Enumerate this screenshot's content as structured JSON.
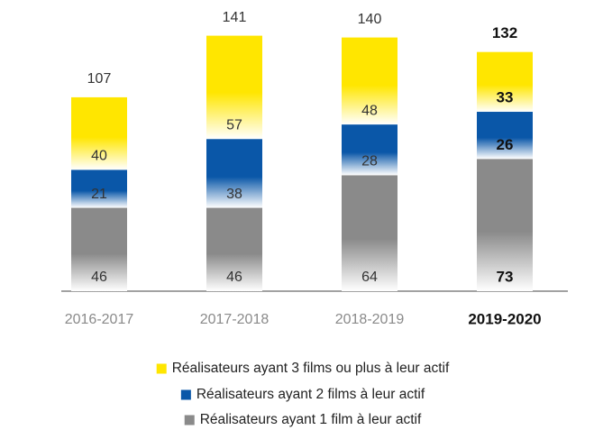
{
  "chart_data": {
    "type": "stacked_bar",
    "categories": [
      "2016-2017",
      "2017-2018",
      "2018-2019",
      "2019-2020"
    ],
    "series": [
      {
        "name": "Réalisateurs ayant 1 film à leur actif",
        "color": "#8a8a8a",
        "values": [
          46,
          46,
          64,
          73
        ]
      },
      {
        "name": "Réalisateurs ayant 2 films à leur actif",
        "color": "#0a57a8",
        "values": [
          21,
          38,
          28,
          26
        ]
      },
      {
        "name": "Réalisateurs ayant 3 films ou plus à leur actif",
        "color": "#ffe600",
        "values": [
          40,
          57,
          48,
          33
        ]
      }
    ],
    "totals": [
      107,
      141,
      140,
      132
    ]
  }
}
